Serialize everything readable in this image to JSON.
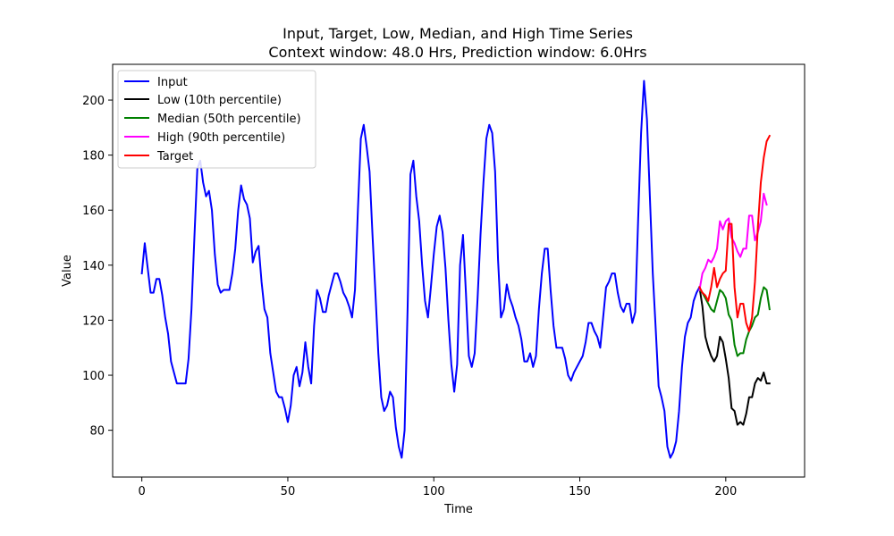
{
  "chart_data": {
    "type": "line",
    "title": "Input, Target, Low, Median, and High Time Series",
    "subtitle": "Context window: 48.0 Hrs, Prediction window: 6.0Hrs",
    "xlabel": "Time",
    "ylabel": "Value",
    "xlim": [
      -10,
      227
    ],
    "ylim": [
      63,
      213
    ],
    "xticks": [
      0,
      50,
      100,
      150,
      200
    ],
    "yticks": [
      80,
      100,
      120,
      140,
      160,
      180,
      200
    ],
    "grid": false,
    "legend_position": "top-left",
    "series": [
      {
        "name": "Input",
        "color": "#0000ff",
        "points": [
          [
            0,
            137
          ],
          [
            1,
            148
          ],
          [
            2,
            139
          ],
          [
            3,
            130
          ],
          [
            4,
            130
          ],
          [
            5,
            135
          ],
          [
            6,
            135
          ],
          [
            7,
            129
          ],
          [
            8,
            121
          ],
          [
            9,
            115
          ],
          [
            10,
            105
          ],
          [
            11,
            101
          ],
          [
            12,
            97
          ],
          [
            13,
            97
          ],
          [
            14,
            97
          ],
          [
            15,
            97
          ],
          [
            16,
            106
          ],
          [
            17,
            124
          ],
          [
            18,
            150
          ],
          [
            19,
            175
          ],
          [
            20,
            178
          ],
          [
            21,
            170
          ],
          [
            22,
            165
          ],
          [
            23,
            167
          ],
          [
            24,
            160
          ],
          [
            25,
            144
          ],
          [
            26,
            133
          ],
          [
            27,
            130
          ],
          [
            28,
            131
          ],
          [
            29,
            131
          ],
          [
            30,
            131
          ],
          [
            31,
            137
          ],
          [
            32,
            146
          ],
          [
            33,
            160
          ],
          [
            34,
            169
          ],
          [
            35,
            164
          ],
          [
            36,
            162
          ],
          [
            37,
            157
          ],
          [
            38,
            141
          ],
          [
            39,
            145
          ],
          [
            40,
            147
          ],
          [
            41,
            134
          ],
          [
            42,
            124
          ],
          [
            43,
            121
          ],
          [
            44,
            108
          ],
          [
            45,
            101
          ],
          [
            46,
            94
          ],
          [
            47,
            92
          ],
          [
            48,
            92
          ],
          [
            49,
            88
          ],
          [
            50,
            83
          ],
          [
            51,
            89
          ],
          [
            52,
            100
          ],
          [
            53,
            103
          ],
          [
            54,
            96
          ],
          [
            55,
            101
          ],
          [
            56,
            112
          ],
          [
            57,
            103
          ],
          [
            58,
            97
          ],
          [
            59,
            118
          ],
          [
            60,
            131
          ],
          [
            61,
            128
          ],
          [
            62,
            123
          ],
          [
            63,
            123
          ],
          [
            64,
            129
          ],
          [
            65,
            133
          ],
          [
            66,
            137
          ],
          [
            67,
            137
          ],
          [
            68,
            134
          ],
          [
            69,
            130
          ],
          [
            70,
            128
          ],
          [
            71,
            125
          ],
          [
            72,
            121
          ],
          [
            73,
            131
          ],
          [
            74,
            160
          ],
          [
            75,
            186
          ],
          [
            76,
            191
          ],
          [
            77,
            183
          ],
          [
            78,
            174
          ],
          [
            79,
            151
          ],
          [
            80,
            130
          ],
          [
            81,
            108
          ],
          [
            82,
            92
          ],
          [
            83,
            87
          ],
          [
            84,
            89
          ],
          [
            85,
            94
          ],
          [
            86,
            92
          ],
          [
            87,
            81
          ],
          [
            88,
            74
          ],
          [
            89,
            70
          ],
          [
            90,
            80
          ],
          [
            91,
            123
          ],
          [
            92,
            173
          ],
          [
            93,
            178
          ],
          [
            94,
            165
          ],
          [
            95,
            156
          ],
          [
            96,
            140
          ],
          [
            97,
            127
          ],
          [
            98,
            121
          ],
          [
            99,
            132
          ],
          [
            100,
            144
          ],
          [
            101,
            154
          ],
          [
            102,
            158
          ],
          [
            103,
            152
          ],
          [
            104,
            139
          ],
          [
            105,
            120
          ],
          [
            106,
            104
          ],
          [
            107,
            94
          ],
          [
            108,
            104
          ],
          [
            109,
            140
          ],
          [
            110,
            151
          ],
          [
            111,
            130
          ],
          [
            112,
            107
          ],
          [
            113,
            103
          ],
          [
            114,
            108
          ],
          [
            115,
            128
          ],
          [
            116,
            151
          ],
          [
            117,
            170
          ],
          [
            118,
            186
          ],
          [
            119,
            191
          ],
          [
            120,
            188
          ],
          [
            121,
            174
          ],
          [
            122,
            142
          ],
          [
            123,
            121
          ],
          [
            124,
            124
          ],
          [
            125,
            133
          ],
          [
            126,
            128
          ],
          [
            127,
            125
          ],
          [
            128,
            121
          ],
          [
            129,
            118
          ],
          [
            130,
            113
          ],
          [
            131,
            105
          ],
          [
            132,
            105
          ],
          [
            133,
            108
          ],
          [
            134,
            103
          ],
          [
            135,
            107
          ],
          [
            136,
            124
          ],
          [
            137,
            137
          ],
          [
            138,
            146
          ],
          [
            139,
            146
          ],
          [
            140,
            131
          ],
          [
            141,
            118
          ],
          [
            142,
            110
          ],
          [
            143,
            110
          ],
          [
            144,
            110
          ],
          [
            145,
            106
          ],
          [
            146,
            100
          ],
          [
            147,
            98
          ],
          [
            148,
            101
          ],
          [
            149,
            103
          ],
          [
            150,
            105
          ],
          [
            151,
            107
          ],
          [
            152,
            112
          ],
          [
            153,
            119
          ],
          [
            154,
            119
          ],
          [
            155,
            116
          ],
          [
            156,
            114
          ],
          [
            157,
            110
          ],
          [
            158,
            121
          ],
          [
            159,
            132
          ],
          [
            160,
            134
          ],
          [
            161,
            137
          ],
          [
            162,
            137
          ],
          [
            163,
            130
          ],
          [
            164,
            125
          ],
          [
            165,
            123
          ],
          [
            166,
            126
          ],
          [
            167,
            126
          ],
          [
            168,
            119
          ],
          [
            169,
            123
          ],
          [
            170,
            157
          ],
          [
            171,
            188
          ],
          [
            172,
            207
          ],
          [
            173,
            193
          ],
          [
            174,
            165
          ],
          [
            175,
            137
          ],
          [
            176,
            117
          ],
          [
            177,
            96
          ],
          [
            178,
            92
          ],
          [
            179,
            87
          ],
          [
            180,
            74
          ],
          [
            181,
            70
          ],
          [
            182,
            72
          ],
          [
            183,
            76
          ],
          [
            184,
            87
          ],
          [
            185,
            103
          ],
          [
            186,
            114
          ],
          [
            187,
            119
          ],
          [
            188,
            121
          ],
          [
            189,
            127
          ],
          [
            190,
            130
          ],
          [
            191,
            132
          ]
        ]
      },
      {
        "name": "Low (10th percentile)",
        "color": "#000000",
        "points": [
          [
            191,
            132
          ],
          [
            192,
            125
          ],
          [
            193,
            114
          ],
          [
            194,
            110
          ],
          [
            195,
            107
          ],
          [
            196,
            105
          ],
          [
            197,
            107
          ],
          [
            198,
            114
          ],
          [
            199,
            112
          ],
          [
            200,
            106
          ],
          [
            201,
            99
          ],
          [
            202,
            88
          ],
          [
            203,
            87
          ],
          [
            204,
            82
          ],
          [
            205,
            83
          ],
          [
            206,
            82
          ],
          [
            207,
            86
          ],
          [
            208,
            92
          ],
          [
            209,
            92
          ],
          [
            210,
            97
          ],
          [
            211,
            99
          ],
          [
            212,
            98
          ],
          [
            213,
            101
          ],
          [
            214,
            97
          ],
          [
            215,
            97
          ]
        ]
      },
      {
        "name": "Median (50th percentile)",
        "color": "#008000",
        "points": [
          [
            191,
            131
          ],
          [
            192,
            130
          ],
          [
            193,
            128
          ],
          [
            194,
            126
          ],
          [
            195,
            124
          ],
          [
            196,
            123
          ],
          [
            197,
            127
          ],
          [
            198,
            131
          ],
          [
            199,
            130
          ],
          [
            200,
            128
          ],
          [
            201,
            122
          ],
          [
            202,
            120
          ],
          [
            203,
            111
          ],
          [
            204,
            107
          ],
          [
            205,
            108
          ],
          [
            206,
            108
          ],
          [
            207,
            113
          ],
          [
            208,
            116
          ],
          [
            209,
            118
          ],
          [
            210,
            121
          ],
          [
            211,
            122
          ],
          [
            212,
            128
          ],
          [
            213,
            132
          ],
          [
            214,
            131
          ],
          [
            215,
            124
          ]
        ]
      },
      {
        "name": "High (90th percentile)",
        "color": "#ff00ff",
        "points": [
          [
            191,
            131
          ],
          [
            192,
            137
          ],
          [
            193,
            139
          ],
          [
            194,
            142
          ],
          [
            195,
            141
          ],
          [
            196,
            143
          ],
          [
            197,
            146
          ],
          [
            198,
            156
          ],
          [
            199,
            153
          ],
          [
            200,
            156
          ],
          [
            201,
            157
          ],
          [
            202,
            150
          ],
          [
            203,
            148
          ],
          [
            204,
            145
          ],
          [
            205,
            143
          ],
          [
            206,
            146
          ],
          [
            207,
            146
          ],
          [
            208,
            158
          ],
          [
            209,
            158
          ],
          [
            210,
            149
          ],
          [
            211,
            152
          ],
          [
            212,
            156
          ],
          [
            213,
            166
          ],
          [
            214,
            162
          ]
        ]
      },
      {
        "name": "Target",
        "color": "#ff0000",
        "points": [
          [
            191,
            132
          ],
          [
            192,
            130
          ],
          [
            193,
            129
          ],
          [
            194,
            127
          ],
          [
            195,
            132
          ],
          [
            196,
            139
          ],
          [
            197,
            132
          ],
          [
            198,
            135
          ],
          [
            199,
            137
          ],
          [
            200,
            138
          ],
          [
            201,
            155
          ],
          [
            202,
            155
          ],
          [
            203,
            132
          ],
          [
            204,
            121
          ],
          [
            205,
            126
          ],
          [
            206,
            126
          ],
          [
            207,
            119
          ],
          [
            208,
            116
          ],
          [
            209,
            121
          ],
          [
            210,
            134
          ],
          [
            211,
            154
          ],
          [
            212,
            170
          ],
          [
            213,
            179
          ],
          [
            214,
            185
          ],
          [
            215,
            187
          ]
        ]
      }
    ]
  }
}
